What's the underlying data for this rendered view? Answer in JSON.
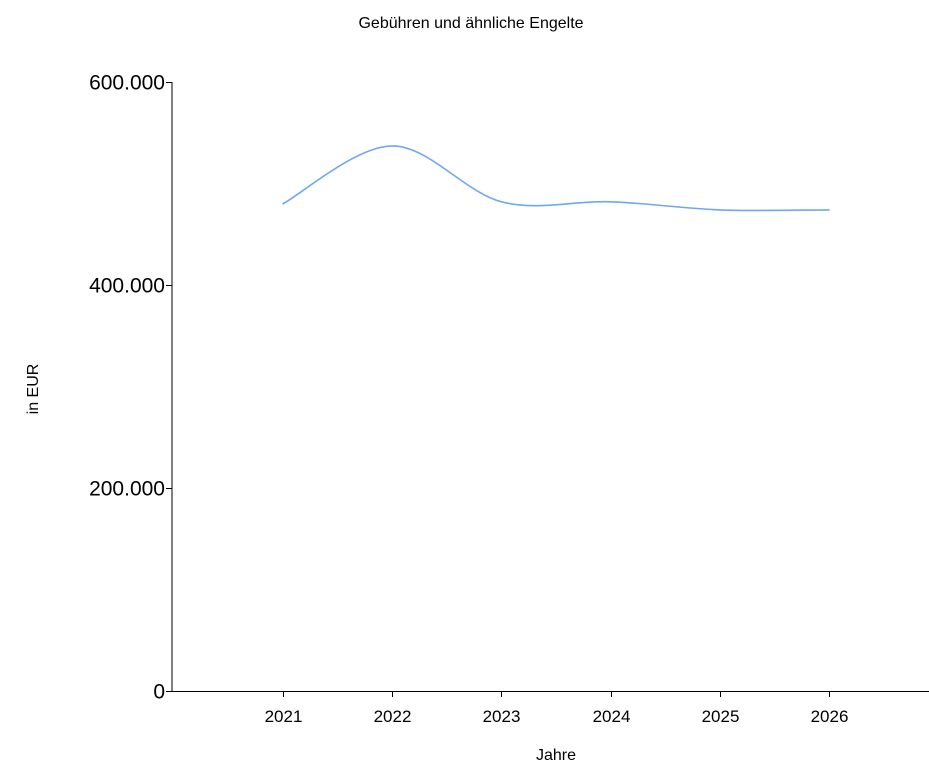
{
  "chart_data": {
    "type": "line",
    "title": "Gebühren und ähnliche Engelte",
    "xlabel": "Jahre",
    "ylabel": "in EUR",
    "categories": [
      "2021",
      "2022",
      "2023",
      "2024",
      "2025",
      "2026"
    ],
    "series": [
      {
        "values": [
          480000,
          537000,
          482000,
          482000,
          474000,
          474000
        ],
        "color": "#6fa8f0",
        "smooth": true
      }
    ],
    "ylim": [
      0,
      600000
    ],
    "yticks": [
      0,
      200000,
      400000,
      600000
    ],
    "ytick_labels": [
      "0",
      "200.000",
      "400.000",
      "600.000"
    ],
    "grid": false,
    "legend": "none",
    "axis_color": "#000000"
  }
}
